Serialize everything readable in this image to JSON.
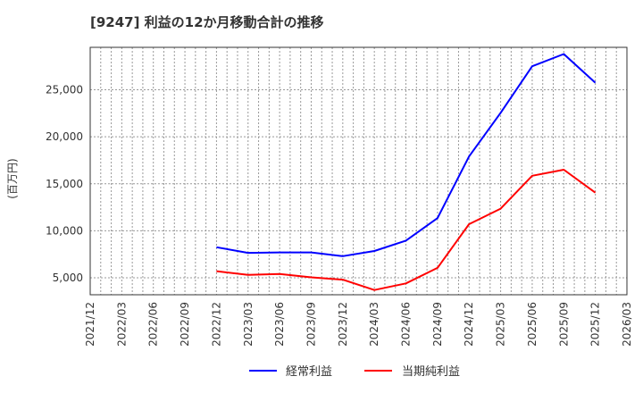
{
  "title": "[9247]  利益の12か月移動合計の推移",
  "chart_data": {
    "type": "line",
    "title": "[9247]  利益の12か月移動合計の推移",
    "xlabel": "",
    "ylabel": "(百万円)",
    "x_ticks": [
      "2021/12",
      "2022/03",
      "2022/06",
      "2022/09",
      "2022/12",
      "2023/03",
      "2023/06",
      "2023/09",
      "2023/12",
      "2024/03",
      "2024/06",
      "2024/09",
      "2024/12",
      "2025/03",
      "2025/06",
      "2025/09",
      "2025/12",
      "2026/03"
    ],
    "y_ticks": [
      5000,
      10000,
      15000,
      20000,
      25000
    ],
    "y_tick_labels": [
      "5,000",
      "10,000",
      "15,000",
      "20,000",
      "25,000"
    ],
    "ylim": [
      3000,
      29700
    ],
    "grid": true,
    "legend_position": "bottom",
    "x": [
      "2022/12",
      "2023/03",
      "2023/06",
      "2023/09",
      "2023/12",
      "2024/03",
      "2024/06",
      "2024/09",
      "2024/12",
      "2025/03",
      "2025/06",
      "2025/09",
      "2025/12"
    ],
    "series": [
      {
        "name": "経常利益",
        "color": "#0000ff",
        "values": [
          8250,
          7650,
          7700,
          7700,
          7300,
          7850,
          8950,
          11350,
          17900,
          22550,
          27500,
          28800,
          25750
        ]
      },
      {
        "name": "当期純利益",
        "color": "#ff0000",
        "values": [
          5700,
          5300,
          5400,
          5050,
          4800,
          3700,
          4400,
          6050,
          10700,
          12350,
          15850,
          16500,
          14050
        ]
      }
    ]
  }
}
